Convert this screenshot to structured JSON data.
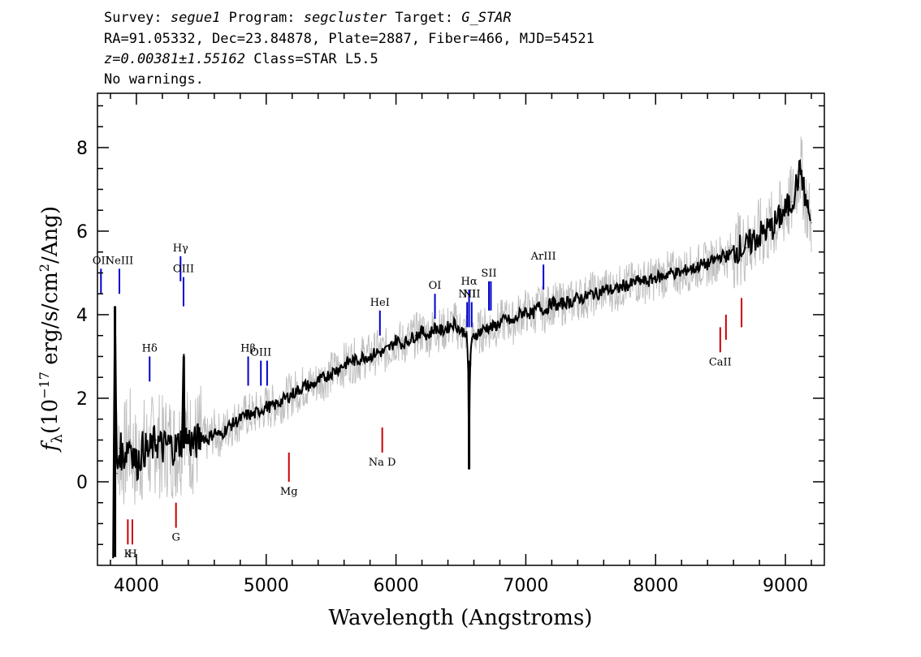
{
  "header": {
    "survey_label": "Survey:",
    "survey": "segue1",
    "program_label": "Program:",
    "program": "segcluster",
    "target_label": "Target:",
    "target": "G_STAR",
    "line2": "RA=91.05332, Dec=23.84878, Plate=2887, Fiber=466, MJD=54521",
    "redshift": "z=0.00381±1.55162",
    "class_text": "Class=STAR L5.5",
    "warnings": "No warnings."
  },
  "chart_data": {
    "type": "line",
    "xlabel": "Wavelength (Angstroms)",
    "ylabel_prefix": "f",
    "ylabel_sub": "λ",
    "ylabel_unit_a": "(10",
    "ylabel_exp": "−17",
    "ylabel_unit_b": " erg/s/cm",
    "ylabel_exp2": "2",
    "ylabel_unit_c": "/Ang)",
    "xlim": [
      3700,
      9300
    ],
    "ylim": [
      -2.0,
      9.3
    ],
    "x_ticks": [
      4000,
      5000,
      6000,
      7000,
      8000,
      9000
    ],
    "y_ticks": [
      0,
      2,
      4,
      6,
      8
    ],
    "colors": {
      "flux": "#000000",
      "noise": "#c0c0c0",
      "emission": "#0000cc",
      "absorption": "#cc0000"
    },
    "series": [
      {
        "key": "flux",
        "x": [
          3820,
          3835,
          3850,
          3870,
          3900,
          3950,
          4000,
          4050,
          4100,
          4150,
          4200,
          4250,
          4300,
          4350,
          4365,
          4375,
          4400,
          4450,
          4500,
          4550,
          4600,
          4650,
          4700,
          4750,
          4800,
          4850,
          4900,
          4950,
          5000,
          5050,
          5100,
          5150,
          5200,
          5250,
          5300,
          5350,
          5400,
          5450,
          5500,
          5550,
          5600,
          5650,
          5700,
          5750,
          5800,
          5850,
          5900,
          5950,
          6000,
          6050,
          6100,
          6150,
          6200,
          6250,
          6300,
          6350,
          6400,
          6450,
          6500,
          6540,
          6555,
          6563,
          6570,
          6590,
          6600,
          6650,
          6700,
          6750,
          6800,
          6850,
          6900,
          6950,
          7000,
          7050,
          7100,
          7150,
          7200,
          7250,
          7300,
          7350,
          7400,
          7450,
          7500,
          7550,
          7600,
          7650,
          7700,
          7750,
          7800,
          7850,
          7900,
          7950,
          8000,
          8050,
          8100,
          8150,
          8200,
          8250,
          8300,
          8350,
          8400,
          8450,
          8500,
          8550,
          8600,
          8650,
          8700,
          8750,
          8800,
          8850,
          8900,
          8950,
          9000,
          9050,
          9100,
          9120,
          9150,
          9200
        ],
        "y": [
          -1.5,
          4.2,
          0.2,
          0.8,
          0.6,
          1.0,
          0.4,
          0.8,
          0.7,
          1.0,
          0.8,
          0.9,
          0.8,
          1.0,
          3.0,
          1.1,
          1.0,
          0.9,
          1.1,
          1.0,
          1.2,
          1.1,
          1.3,
          1.4,
          1.5,
          1.6,
          1.6,
          1.7,
          1.8,
          1.8,
          1.9,
          2.0,
          2.1,
          2.2,
          2.3,
          2.3,
          2.4,
          2.5,
          2.6,
          2.7,
          2.8,
          2.9,
          2.9,
          3.0,
          3.0,
          3.1,
          3.1,
          3.2,
          3.4,
          3.3,
          3.4,
          3.5,
          3.6,
          3.5,
          3.7,
          3.6,
          3.7,
          3.8,
          3.6,
          3.6,
          2.9,
          0.3,
          3.0,
          3.4,
          3.5,
          3.6,
          3.7,
          3.7,
          3.8,
          3.9,
          3.8,
          4.0,
          4.1,
          4.0,
          4.2,
          4.1,
          4.3,
          4.2,
          4.3,
          4.3,
          4.4,
          4.4,
          4.5,
          4.5,
          4.6,
          4.6,
          4.6,
          4.7,
          4.7,
          4.8,
          4.8,
          4.8,
          4.9,
          4.9,
          5.0,
          5.0,
          5.0,
          5.1,
          5.1,
          5.2,
          5.2,
          5.3,
          5.4,
          5.4,
          5.5,
          5.6,
          5.6,
          5.8,
          5.9,
          6.0,
          6.1,
          6.3,
          6.5,
          6.7,
          7.3,
          7.5,
          6.8,
          6.2
        ]
      }
    ],
    "emission_lines": [
      {
        "label": "OII",
        "x": 3727,
        "top": 5.1,
        "bottom": 4.5
      },
      {
        "label": "NeIII",
        "x": 3869,
        "top": 5.1,
        "bottom": 4.5
      },
      {
        "label": "Hδ",
        "x": 4102,
        "top": 3.0,
        "bottom": 2.4
      },
      {
        "label": "Hγ",
        "x": 4340,
        "top": 5.4,
        "bottom": 4.8
      },
      {
        "label": "OIII",
        "x": 4363,
        "top": 4.9,
        "bottom": 4.2
      },
      {
        "label": "Hβ",
        "x": 4861,
        "top": 3.0,
        "bottom": 2.3
      },
      {
        "label": "OIII",
        "x": 4959,
        "top": 2.9,
        "bottom": 2.3
      },
      {
        "label": "",
        "x": 5007,
        "top": 2.9,
        "bottom": 2.3
      },
      {
        "label": "HeI",
        "x": 5876,
        "top": 4.1,
        "bottom": 3.5
      },
      {
        "label": "OI",
        "x": 6300,
        "top": 4.5,
        "bottom": 3.9
      },
      {
        "label": "NII",
        "x": 6548,
        "top": 4.3,
        "bottom": 3.7
      },
      {
        "label": "Hα",
        "x": 6563,
        "top": 4.6,
        "bottom": 3.7
      },
      {
        "label": "NII",
        "x": 6583,
        "top": 4.3,
        "bottom": 3.7
      },
      {
        "label": "SII",
        "x": 6716,
        "top": 4.8,
        "bottom": 4.1
      },
      {
        "label": "",
        "x": 6731,
        "top": 4.8,
        "bottom": 4.1
      },
      {
        "label": "ArIII",
        "x": 7136,
        "top": 5.2,
        "bottom": 4.6
      }
    ],
    "absorption_lines": [
      {
        "label": "K",
        "x": 3934,
        "top": -0.9,
        "bottom": -1.5
      },
      {
        "label": "H",
        "x": 3969,
        "top": -0.9,
        "bottom": -1.5
      },
      {
        "label": "G",
        "x": 4305,
        "top": -0.5,
        "bottom": -1.1
      },
      {
        "label": "Mg",
        "x": 5175,
        "top": 0.7,
        "bottom": 0.0
      },
      {
        "label": "Na D",
        "x": 5894,
        "top": 1.3,
        "bottom": 0.7
      },
      {
        "label": "CaII",
        "x": 8498,
        "top": 3.7,
        "bottom": 3.1
      },
      {
        "label": "",
        "x": 8542,
        "top": 4.0,
        "bottom": 3.4
      },
      {
        "label": "",
        "x": 8662,
        "top": 4.4,
        "bottom": 3.7
      }
    ]
  }
}
